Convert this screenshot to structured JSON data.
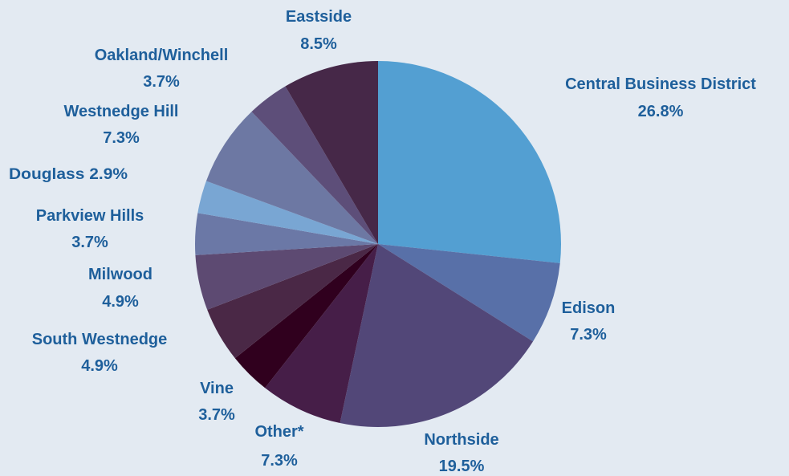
{
  "chart_data": {
    "type": "pie",
    "start_angle_deg": 0,
    "direction": "clockwise",
    "slices": [
      {
        "label": "Central Business District",
        "value": 26.8,
        "display": "26.8%",
        "color": "#539fd2"
      },
      {
        "label": "Edison",
        "value": 7.3,
        "display": "7.3%",
        "color": "#5870a8"
      },
      {
        "label": "Northside",
        "value": 19.5,
        "display": "19.5%",
        "color": "#524778"
      },
      {
        "label": "Other*",
        "value": 7.3,
        "display": "7.3%",
        "color": "#461e48"
      },
      {
        "label": "Vine",
        "value": 3.7,
        "display": "3.7%",
        "color": "#30001e"
      },
      {
        "label": "South Westnedge",
        "value": 4.9,
        "display": "4.9%",
        "color": "#4a2846"
      },
      {
        "label": "Milwood",
        "value": 4.9,
        "display": "4.9%",
        "color": "#5d4a72"
      },
      {
        "label": "Parkview Hills",
        "value": 3.7,
        "display": "3.7%",
        "color": "#6b78a6"
      },
      {
        "label": "Douglass",
        "value": 2.9,
        "display": "2.9%",
        "color": "#79a6d3"
      },
      {
        "label": "Westnedge Hill",
        "value": 7.3,
        "display": "7.3%",
        "color": "#6d78a3"
      },
      {
        "label": "Oakland/Winchell",
        "value": 3.7,
        "display": "3.7%",
        "color": "#5d4e79"
      },
      {
        "label": "Eastside",
        "value": 8.5,
        "display": "8.5%",
        "color": "#462848"
      }
    ],
    "title": "",
    "legend": "none",
    "label_color": "#1e5f9b",
    "background": "#e3eaf2"
  }
}
